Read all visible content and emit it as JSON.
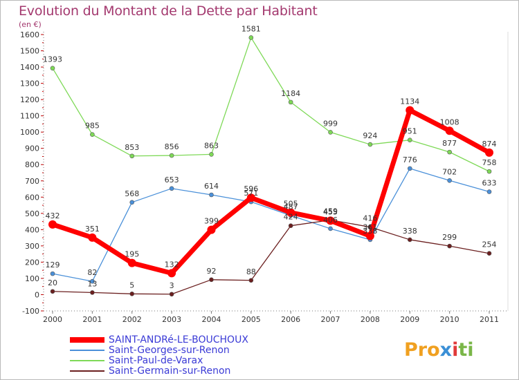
{
  "chart_data": {
    "type": "line",
    "title": "Evolution du Montant de la Dette par Habitant",
    "subtitle": "(en €)",
    "x": [
      "2000",
      "2001",
      "2002",
      "2003",
      "2004",
      "2005",
      "2006",
      "2007",
      "2008",
      "2009",
      "2010",
      "2011"
    ],
    "y_ticks": [
      -100,
      0,
      100,
      200,
      300,
      400,
      500,
      600,
      700,
      800,
      900,
      1000,
      1100,
      1200,
      1300,
      1400,
      1500,
      1600
    ],
    "ylim": [
      -100,
      1600
    ],
    "grid": false,
    "legend_position": "bottom-left",
    "series": [
      {
        "name": "SAINT-ANDRé-LE-BOUCHOUX",
        "color": "#ff0000",
        "values": [
          432,
          351,
          195,
          132,
          399,
          596,
          505,
          455,
          361,
          1134,
          1008,
          874
        ]
      },
      {
        "name": "Saint-Georges-sur-Renon",
        "color": "#4a90d9",
        "values": [
          129,
          82,
          568,
          653,
          614,
          571,
          487,
          406,
          338,
          776,
          702,
          633
        ]
      },
      {
        "name": "Saint-Paul-de-Varax",
        "color": "#7ed957",
        "values": [
          1393,
          985,
          853,
          856,
          863,
          1581,
          1184,
          999,
          924,
          951,
          877,
          758
        ]
      },
      {
        "name": "Saint-Germain-sur-Renon",
        "color": "#6b1f1f",
        "values": [
          20,
          13,
          5,
          3,
          92,
          88,
          424,
          459,
          416,
          338,
          299,
          254
        ]
      }
    ]
  },
  "logo": {
    "parts": [
      "Pro",
      "x",
      "i",
      "ti"
    ]
  }
}
